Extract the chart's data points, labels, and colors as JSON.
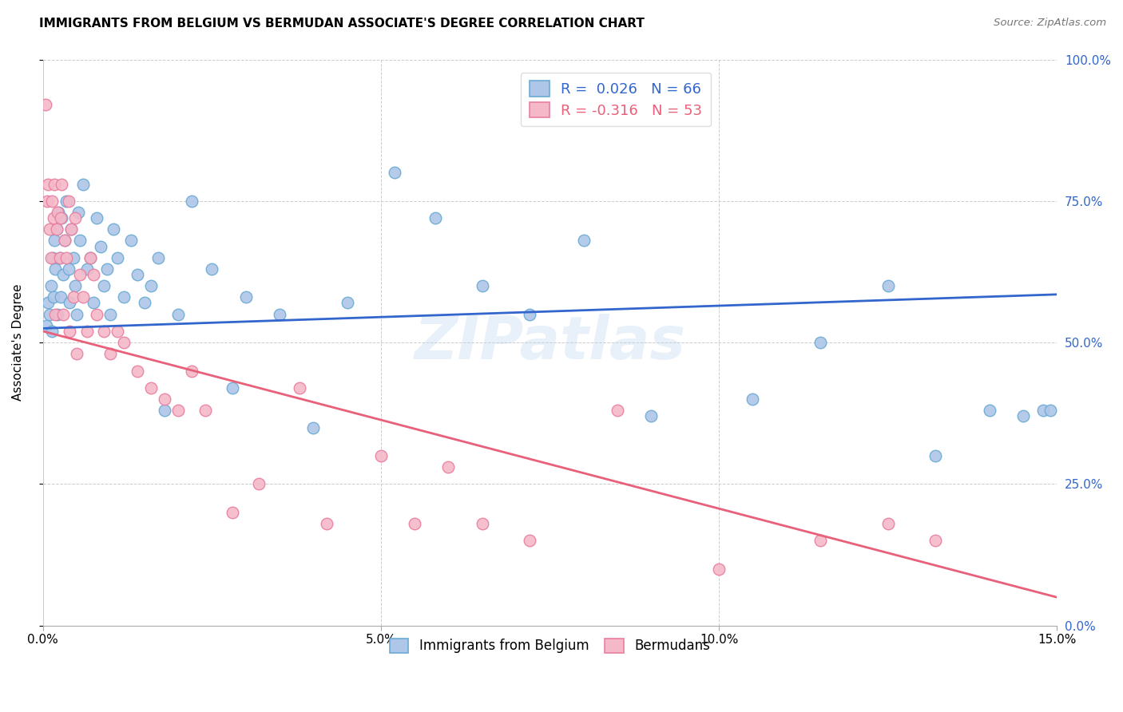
{
  "title": "IMMIGRANTS FROM BELGIUM VS BERMUDAN ASSOCIATE'S DEGREE CORRELATION CHART",
  "source": "Source: ZipAtlas.com",
  "ylabel": "Associate's Degree",
  "x_min": 0.0,
  "x_max": 15.0,
  "y_min": 0.0,
  "y_max": 100.0,
  "x_ticks": [
    0.0,
    5.0,
    10.0,
    15.0
  ],
  "x_tick_labels": [
    "0.0%",
    "5.0%",
    "10.0%",
    "15.0%"
  ],
  "y_ticks": [
    0.0,
    25.0,
    50.0,
    75.0,
    100.0
  ],
  "y_tick_labels": [
    "0.0%",
    "25.0%",
    "50.0%",
    "75.0%",
    "100.0%"
  ],
  "blue_R": 0.026,
  "blue_N": 66,
  "pink_R": -0.316,
  "pink_N": 53,
  "legend_label_blue": "Immigrants from Belgium",
  "legend_label_pink": "Bermudans",
  "blue_color": "#aec6e8",
  "pink_color": "#f4b8c8",
  "blue_edge": "#6aaad4",
  "pink_edge": "#e87fa0",
  "blue_line_color": "#3366cc",
  "pink_line_color": "#e8607a",
  "watermark": "ZIPatlas",
  "blue_line_x0": 0.0,
  "blue_line_y0": 52.5,
  "blue_line_x1": 15.0,
  "blue_line_y1": 58.5,
  "pink_line_x0": 0.0,
  "pink_line_y0": 52.0,
  "pink_line_x1": 15.0,
  "pink_line_y1": 5.0,
  "blue_x": [
    0.05,
    0.08,
    0.1,
    0.12,
    0.14,
    0.15,
    0.16,
    0.17,
    0.18,
    0.2,
    0.22,
    0.23,
    0.25,
    0.27,
    0.28,
    0.3,
    0.32,
    0.35,
    0.38,
    0.4,
    0.42,
    0.45,
    0.48,
    0.5,
    0.52,
    0.55,
    0.6,
    0.65,
    0.7,
    0.75,
    0.8,
    0.85,
    0.9,
    0.95,
    1.0,
    1.05,
    1.1,
    1.2,
    1.3,
    1.4,
    1.5,
    1.6,
    1.7,
    1.8,
    2.0,
    2.2,
    2.5,
    2.8,
    3.0,
    3.5,
    4.0,
    4.5,
    5.2,
    5.8,
    6.5,
    7.2,
    8.0,
    9.0,
    10.5,
    11.5,
    12.5,
    13.2,
    14.0,
    14.5,
    14.8,
    14.9
  ],
  "blue_y": [
    53,
    57,
    55,
    60,
    52,
    65,
    58,
    68,
    63,
    70,
    55,
    73,
    65,
    58,
    72,
    62,
    68,
    75,
    63,
    57,
    70,
    65,
    60,
    55,
    73,
    68,
    78,
    63,
    65,
    57,
    72,
    67,
    60,
    63,
    55,
    70,
    65,
    58,
    68,
    62,
    57,
    60,
    65,
    38,
    55,
    75,
    63,
    42,
    58,
    55,
    35,
    57,
    80,
    72,
    60,
    55,
    68,
    37,
    40,
    50,
    60,
    30,
    38,
    37,
    38,
    38
  ],
  "pink_x": [
    0.04,
    0.06,
    0.08,
    0.1,
    0.12,
    0.14,
    0.16,
    0.17,
    0.18,
    0.2,
    0.22,
    0.25,
    0.27,
    0.28,
    0.3,
    0.32,
    0.35,
    0.38,
    0.4,
    0.42,
    0.45,
    0.48,
    0.5,
    0.55,
    0.6,
    0.65,
    0.7,
    0.75,
    0.8,
    0.9,
    1.0,
    1.1,
    1.2,
    1.4,
    1.6,
    1.8,
    2.0,
    2.2,
    2.4,
    2.8,
    3.2,
    3.8,
    4.2,
    5.0,
    5.5,
    6.0,
    6.5,
    7.2,
    8.5,
    10.0,
    11.5,
    12.5,
    13.2
  ],
  "pink_y": [
    92,
    75,
    78,
    70,
    65,
    75,
    72,
    78,
    55,
    70,
    73,
    65,
    72,
    78,
    55,
    68,
    65,
    75,
    52,
    70,
    58,
    72,
    48,
    62,
    58,
    52,
    65,
    62,
    55,
    52,
    48,
    52,
    50,
    45,
    42,
    40,
    38,
    45,
    38,
    20,
    25,
    42,
    18,
    30,
    18,
    28,
    18,
    15,
    38,
    10,
    15,
    18,
    15
  ],
  "figsize": [
    14.06,
    8.92
  ],
  "dpi": 100
}
